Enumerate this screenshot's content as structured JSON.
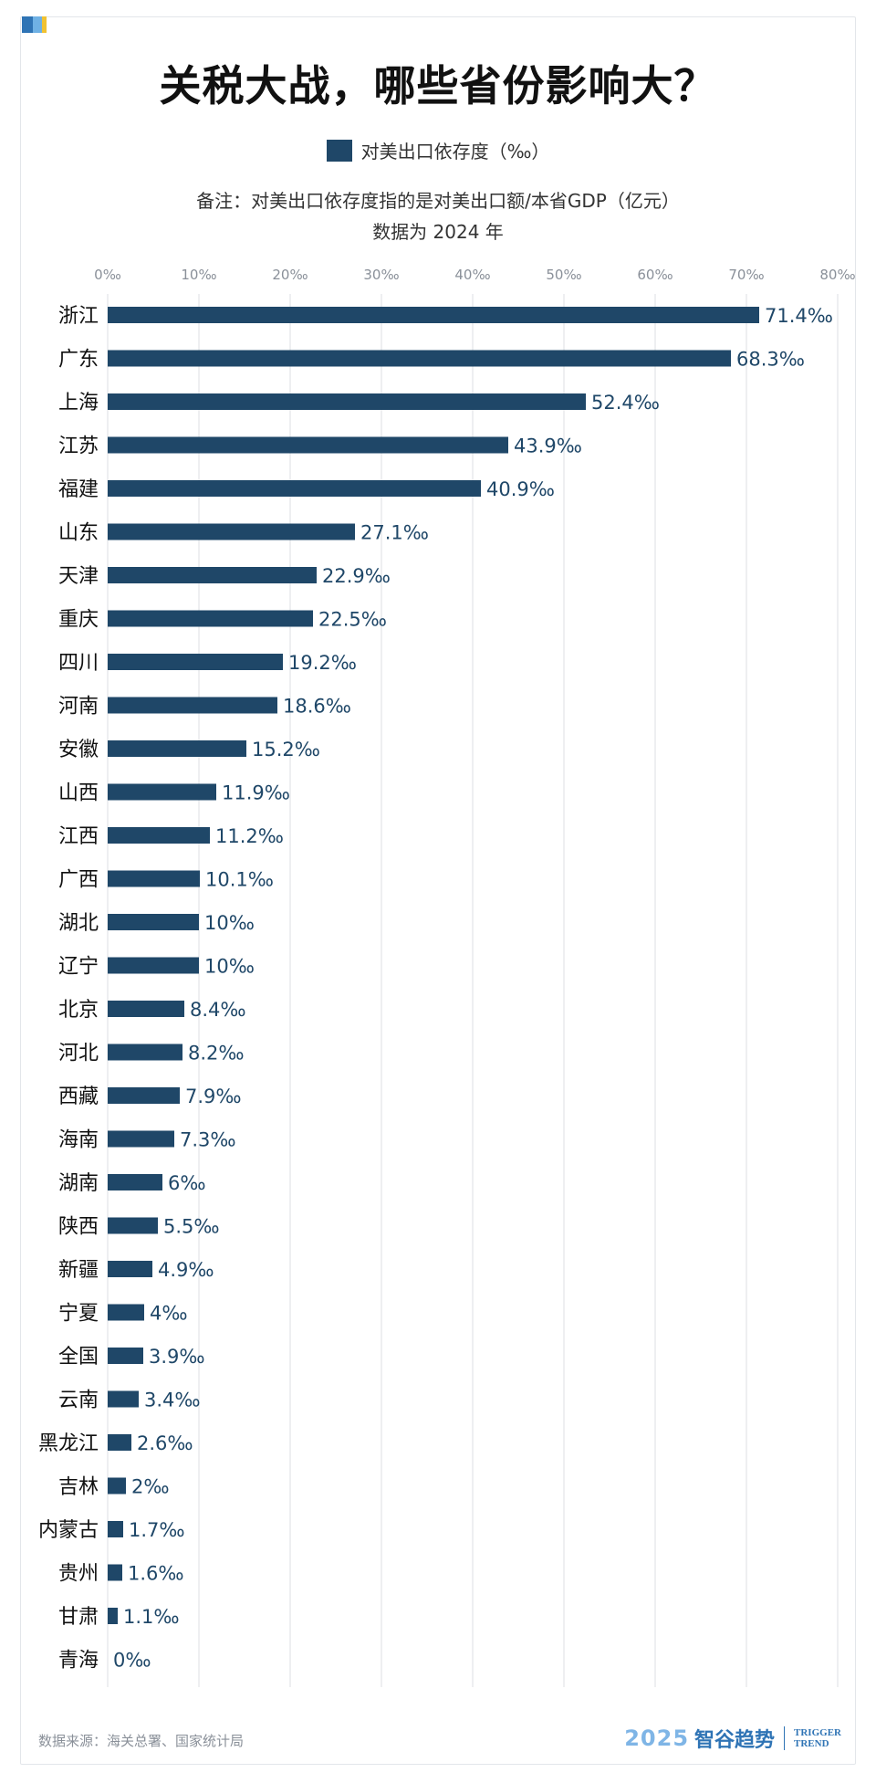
{
  "title": "关税大战，哪些省份影响大？",
  "legend_label": "对美出口依存度（‰）",
  "note_line1": "备注：对美出口依存度指的是对美出口额/本省GDP（亿元）",
  "note_line2": "数据为 2024 年",
  "source": "数据来源：海关总署、国家统计局",
  "brand": {
    "year": "2025",
    "name": "智谷趋势",
    "en_line1": "TRIGGER",
    "en_line2": "TREND"
  },
  "colors": {
    "bar": "#1f4768",
    "grid": "#e6e8eb",
    "accent": "#2f74b5"
  },
  "chart_data": {
    "type": "bar",
    "orientation": "horizontal",
    "ylim_label": "",
    "xlim": [
      0,
      80
    ],
    "x_ticks": [
      "0‰",
      "10‰",
      "20‰",
      "30‰",
      "40‰",
      "50‰",
      "60‰",
      "70‰",
      "80‰"
    ],
    "grid": true,
    "categories": [
      "浙江",
      "广东",
      "上海",
      "江苏",
      "福建",
      "山东",
      "天津",
      "重庆",
      "四川",
      "河南",
      "安徽",
      "山西",
      "江西",
      "广西",
      "湖北",
      "辽宁",
      "北京",
      "河北",
      "西藏",
      "海南",
      "湖南",
      "陕西",
      "新疆",
      "宁夏",
      "全国",
      "云南",
      "黑龙江",
      "吉林",
      "内蒙古",
      "贵州",
      "甘肃",
      "青海"
    ],
    "values": [
      71.4,
      68.3,
      52.4,
      43.9,
      40.9,
      27.1,
      22.9,
      22.5,
      19.2,
      18.6,
      15.2,
      11.9,
      11.2,
      10.1,
      10,
      10,
      8.4,
      8.2,
      7.9,
      7.3,
      6,
      5.5,
      4.9,
      4,
      3.9,
      3.4,
      2.6,
      2,
      1.7,
      1.6,
      1.1,
      0
    ],
    "value_labels": [
      "71.4‰",
      "68.3‰",
      "52.4‰",
      "43.9‰",
      "40.9‰",
      "27.1‰",
      "22.9‰",
      "22.5‰",
      "19.2‰",
      "18.6‰",
      "15.2‰",
      "11.9‰",
      "11.2‰",
      "10.1‰",
      "10‰",
      "10‰",
      "8.4‰",
      "8.2‰",
      "7.9‰",
      "7.3‰",
      "6‰",
      "5.5‰",
      "4.9‰",
      "4‰",
      "3.9‰",
      "3.4‰",
      "2.6‰",
      "2‰",
      "1.7‰",
      "1.6‰",
      "1.1‰",
      "0‰"
    ]
  }
}
